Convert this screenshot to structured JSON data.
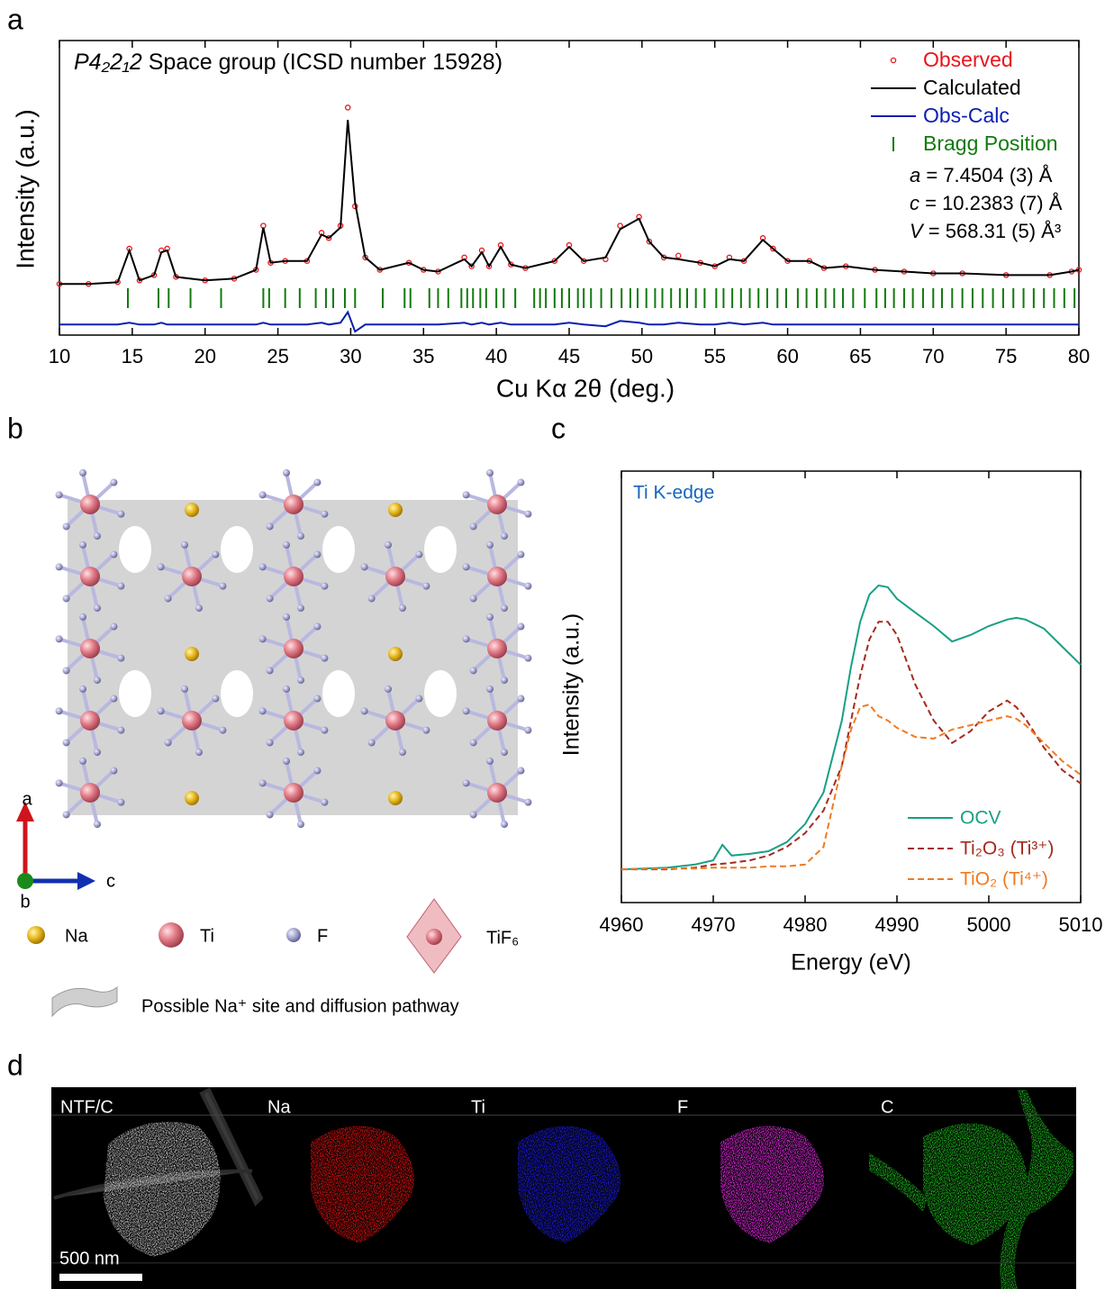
{
  "panels": [
    "a",
    "b",
    "c",
    "d"
  ],
  "chart_data": [
    {
      "type": "line",
      "annotation": {
        "symbol": "P4₂2₁2",
        "text": " Space group (ICSD number 15928)"
      },
      "lattice": [
        {
          "symbol": "a",
          "text": " = 7.4504 (3) Å"
        },
        {
          "symbol": "c",
          "text": " = 10.2383 (7) Å"
        },
        {
          "symbol": "V",
          "text": " = 568.31 (5) Å³"
        }
      ],
      "xlabel": "Cu Kα 2θ (deg.)",
      "ylabel": "Intensity (a.u.)",
      "xlim": [
        10,
        80
      ],
      "xticks": [
        10,
        15,
        20,
        25,
        30,
        35,
        40,
        45,
        50,
        55,
        60,
        65,
        70,
        75,
        80
      ],
      "ylim": [
        -29,
        138
      ],
      "x": [
        10,
        12,
        14,
        14.8,
        15.5,
        16.5,
        17,
        17.4,
        18,
        20,
        22,
        23.5,
        24,
        24.5,
        25.5,
        27,
        28,
        28.5,
        29.3,
        29.8,
        30.3,
        31,
        32,
        34,
        35,
        36,
        37.8,
        38.3,
        39,
        39.5,
        40.3,
        41,
        42,
        44,
        45,
        46,
        47.5,
        48.5,
        49.8,
        50.5,
        51.5,
        52.5,
        54,
        55,
        56,
        57,
        58.3,
        59,
        60,
        61.5,
        62.5,
        64,
        66,
        68,
        70,
        72,
        75,
        78,
        79.5,
        80
      ],
      "series": [
        {
          "name": "Observed",
          "color": "#e8141b",
          "marker": "circle",
          "values": [
            0,
            0,
            1,
            20,
            2,
            5,
            19,
            20,
            4,
            2,
            3,
            8,
            33,
            12,
            13,
            13,
            29,
            26,
            33,
            100,
            44,
            15,
            8,
            12,
            8,
            7,
            15,
            10,
            19,
            10,
            22,
            11,
            9,
            13,
            22,
            13,
            14,
            33,
            38,
            24,
            15,
            16,
            12,
            10,
            15,
            13,
            26,
            20,
            13,
            13,
            9,
            10,
            8,
            7,
            6,
            6,
            5,
            5,
            7,
            8
          ]
        },
        {
          "name": "Calculated",
          "color": "#000000",
          "values": [
            0,
            0,
            1,
            19,
            2,
            5,
            18,
            19,
            4,
            2,
            3,
            8,
            32,
            12,
            13,
            13,
            28,
            26,
            32,
            93,
            46,
            15,
            8,
            12,
            8,
            7,
            14,
            10,
            18,
            10,
            21,
            11,
            9,
            13,
            21,
            13,
            15,
            31,
            37,
            24,
            15,
            14,
            12,
            10,
            14,
            13,
            25,
            20,
            13,
            13,
            9,
            10,
            8,
            7,
            6,
            6,
            5,
            5,
            7,
            8
          ]
        },
        {
          "name": "Obs-Calc",
          "color": "#0a1fb0",
          "values": [
            -23,
            -23,
            -23,
            -22,
            -23,
            -23,
            -22,
            -23,
            -23,
            -23,
            -23,
            -23,
            -22,
            -23,
            -23,
            -23,
            -22,
            -23,
            -22,
            -16,
            -27,
            -23,
            -23,
            -23,
            -23,
            -23,
            -22,
            -23,
            -22,
            -23,
            -22,
            -23,
            -23,
            -23,
            -22,
            -23,
            -24,
            -21,
            -22,
            -23,
            -23,
            -22,
            -23,
            -23,
            -22,
            -23,
            -22,
            -23,
            -23,
            -23,
            -23,
            -23,
            -23,
            -23,
            -23,
            -23,
            -23,
            -23,
            -23,
            -23
          ]
        }
      ],
      "bragg": {
        "name": "Bragg Position",
        "color": "#117a0e",
        "positions": [
          14.7,
          16.8,
          17.5,
          19,
          21.1,
          24,
          24.4,
          25.5,
          26.5,
          27.6,
          28.3,
          28.8,
          29.6,
          30.3,
          32.2,
          33.7,
          34.1,
          35.4,
          36,
          36.7,
          37.6,
          38,
          38.4,
          38.9,
          39.3,
          40,
          40.5,
          41.3,
          42.6,
          43,
          43.4,
          44,
          44.5,
          45,
          45.6,
          46,
          46.5,
          47.2,
          47.9,
          48.6,
          49.2,
          49.7,
          50.3,
          50.9,
          51.4,
          52,
          52.6,
          53.1,
          53.7,
          54.3,
          55.1,
          55.6,
          56.2,
          56.8,
          57.4,
          58,
          58.6,
          59.3,
          59.9,
          60.7,
          61.3,
          62,
          62.6,
          63.2,
          63.8,
          64.5,
          65.3,
          66.1,
          66.7,
          67.3,
          68,
          68.6,
          69.3,
          70,
          70.6,
          71.3,
          72,
          72.7,
          73.4,
          74.1,
          74.8,
          75.5,
          76.2,
          76.9,
          77.6,
          78.3,
          79,
          79.7
        ]
      }
    },
    {
      "type": "line",
      "annotation": "Ti K-edge",
      "xlabel": "Energy (eV)",
      "ylabel": "Intensity (a.u.)",
      "xlim": [
        4960,
        5010
      ],
      "xticks": [
        4960,
        4970,
        4980,
        4990,
        5000,
        5010
      ],
      "ylim": [
        0,
        100
      ],
      "x": [
        4960,
        4965,
        4968,
        4970,
        4971,
        4972,
        4974,
        4976,
        4978,
        4980,
        4982,
        4984,
        4985,
        4986,
        4987,
        4988,
        4989,
        4990,
        4992,
        4994,
        4996,
        4998,
        5000,
        5002,
        5003,
        5004,
        5006,
        5008,
        5010
      ],
      "series": [
        {
          "name": "OCV",
          "color": "#17a083",
          "dash": false,
          "values": [
            7.7,
            8.1,
            8.8,
            9.8,
            13.4,
            10.9,
            11.3,
            11.9,
            14,
            18.2,
            25.5,
            42.2,
            54.7,
            65.1,
            71.4,
            73.5,
            73.1,
            70.4,
            67.2,
            64.1,
            60.5,
            62,
            64.1,
            65.6,
            66,
            65.6,
            63.5,
            59.3,
            55.1
          ]
        },
        {
          "name": "Ti₂O₃ (Ti³⁺)",
          "color": "#a52a1e",
          "dash": true,
          "values": [
            7.7,
            7.7,
            8.1,
            8.8,
            9,
            9.2,
            9.8,
            10.9,
            12.9,
            16.1,
            21.3,
            31.7,
            42.2,
            52.6,
            61,
            65.1,
            65.1,
            62,
            50.5,
            42.2,
            37,
            39.7,
            44.3,
            46.8,
            45.3,
            42.6,
            35.9,
            30.7,
            27.6
          ]
        },
        {
          "name": "TiO₂ (Ti⁴⁺)",
          "color": "#f07a22",
          "dash": true,
          "values": [
            7.7,
            7.9,
            7.9,
            8.1,
            8.1,
            8.1,
            8.1,
            8.4,
            8.4,
            8.8,
            12.9,
            31.7,
            40.1,
            45.3,
            45.9,
            43.2,
            42.2,
            40.5,
            38.4,
            38,
            40.1,
            41.1,
            42.2,
            43.2,
            42.6,
            41.1,
            37,
            32.8,
            29.6
          ]
        }
      ]
    }
  ],
  "structure": {
    "axes": [
      "a",
      "b",
      "c"
    ],
    "legend": [
      "Na",
      "Ti",
      "F",
      "TiF₆"
    ],
    "pathway": "Possible Na⁺ site and diffusion pathway"
  },
  "eds": {
    "labels": [
      "NTF/C",
      "Na",
      "Ti",
      "F",
      "C"
    ],
    "scale_bar": "500 nm"
  }
}
